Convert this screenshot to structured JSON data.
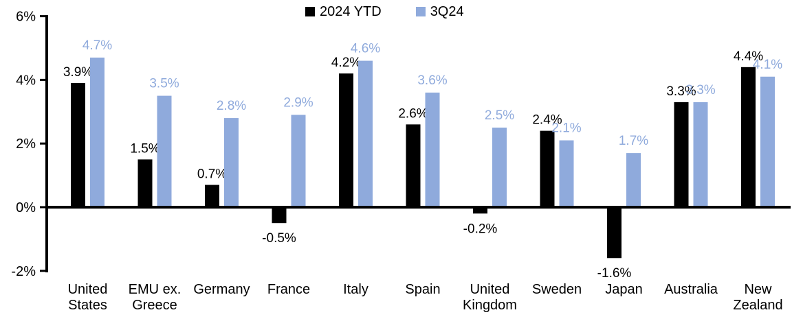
{
  "chart_data": {
    "type": "bar",
    "title": "",
    "categories": [
      "United States",
      "EMU ex. Greece",
      "Germany",
      "France",
      "Italy",
      "Spain",
      "United Kingdom",
      "Sweden",
      "Japan",
      "Australia",
      "New Zealand"
    ],
    "category_display_lines": [
      [
        "United",
        "States"
      ],
      [
        "EMU ex.",
        "Greece"
      ],
      [
        "Germany"
      ],
      [
        "France"
      ],
      [
        "Italy"
      ],
      [
        "Spain"
      ],
      [
        "United",
        "Kingdom"
      ],
      [
        "Sweden"
      ],
      [
        "Japan"
      ],
      [
        "Australia"
      ],
      [
        "New",
        "Zealand"
      ]
    ],
    "series": [
      {
        "name": "2024 YTD",
        "color": "#000000",
        "values": [
          3.9,
          1.5,
          0.7,
          -0.5,
          4.2,
          2.6,
          -0.2,
          2.4,
          -1.6,
          3.3,
          4.4
        ],
        "labels": [
          "3.9%",
          "1.5%",
          "0.7%",
          "-0.5%",
          "4.2%",
          "2.6%",
          "-0.2%",
          "2.4%",
          "-1.6%",
          "3.3%",
          "4.4%"
        ]
      },
      {
        "name": "3Q24",
        "color": "#8FAADC",
        "values": [
          4.7,
          3.5,
          2.8,
          2.9,
          4.6,
          3.6,
          2.5,
          2.1,
          1.7,
          3.3,
          4.1
        ],
        "labels": [
          "4.7%",
          "3.5%",
          "2.8%",
          "2.9%",
          "4.6%",
          "3.6%",
          "2.5%",
          "2.1%",
          "1.7%",
          "3.3%",
          "4.1%"
        ]
      }
    ],
    "ylim": [
      -2,
      6
    ],
    "yticks": [
      {
        "value": 6,
        "label": "6%"
      },
      {
        "value": 4,
        "label": "4%"
      },
      {
        "value": 2,
        "label": "2%"
      },
      {
        "value": 0,
        "label": "0%"
      },
      {
        "value": -2,
        "label": "-2%"
      }
    ],
    "grid": false,
    "legend_position": "top-center",
    "axis_color": "#000000",
    "background": "#FFFFFF"
  }
}
